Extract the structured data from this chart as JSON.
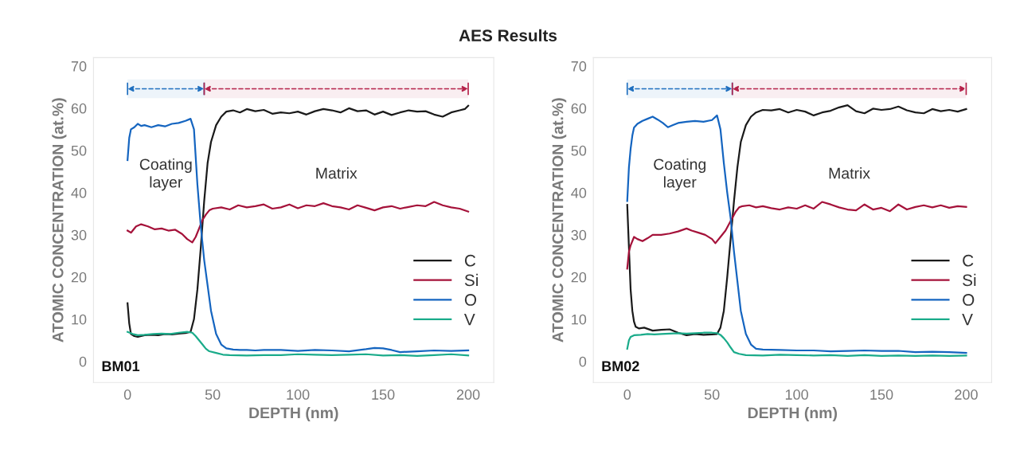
{
  "chart_data": [
    {
      "type": "line",
      "title": "AES Results",
      "xlabel": "DEPTH (nm)",
      "ylabel": "ATOMIC CONCENTRATION (at.%)",
      "xlim": [
        -20,
        215
      ],
      "ylim": [
        -5,
        72
      ],
      "xticks": [
        0,
        50,
        100,
        150,
        200
      ],
      "yticks": [
        0,
        10,
        20,
        30,
        40,
        50,
        60,
        70
      ],
      "grid": false,
      "legend": "right",
      "annotations": [
        "Coating layer",
        "Matrix",
        "BM01"
      ],
      "bands": [
        {
          "axis": "x",
          "from": 0,
          "to": 45,
          "color": "#1f6fbf"
        },
        {
          "axis": "x",
          "from": 45,
          "to": 200,
          "color": "#b5224a"
        }
      ],
      "series": [
        {
          "name": "C",
          "color": "#1a1a1a",
          "x": [
            0,
            1,
            2,
            4,
            6,
            8,
            10,
            14,
            18,
            22,
            26,
            30,
            34,
            37,
            39,
            41,
            43,
            45,
            47,
            49,
            52,
            55,
            58,
            62,
            66,
            70,
            75,
            80,
            85,
            90,
            95,
            100,
            105,
            110,
            115,
            120,
            125,
            130,
            135,
            140,
            145,
            150,
            155,
            160,
            165,
            170,
            175,
            180,
            185,
            190,
            195,
            198,
            200
          ],
          "values": [
            13.8,
            9,
            6.5,
            6,
            5.8,
            6,
            6.2,
            6.3,
            6.2,
            6.5,
            6.4,
            6.6,
            6.7,
            7,
            10,
            17,
            27,
            38,
            47,
            52,
            56,
            58,
            59.2,
            59.5,
            59,
            59.8,
            59.3,
            59.6,
            58.7,
            59,
            58.8,
            59.2,
            58.5,
            59.3,
            59.8,
            59.5,
            59,
            60,
            59.3,
            59.5,
            58.5,
            59.2,
            58.4,
            59,
            59.5,
            59.2,
            59.3,
            58.5,
            58,
            59,
            59.5,
            59.8,
            60.6
          ]
        },
        {
          "name": "Si",
          "color": "#a5123a",
          "x": [
            0,
            2,
            5,
            8,
            12,
            16,
            20,
            24,
            28,
            32,
            35,
            38,
            40,
            42,
            44,
            46,
            48,
            50,
            55,
            60,
            65,
            70,
            75,
            80,
            85,
            90,
            95,
            100,
            105,
            110,
            115,
            120,
            125,
            130,
            135,
            140,
            145,
            150,
            155,
            160,
            165,
            170,
            175,
            180,
            185,
            190,
            195,
            200
          ],
          "values": [
            31,
            30.5,
            32,
            32.5,
            32,
            31.3,
            31.5,
            31,
            31.2,
            30.2,
            29,
            28.2,
            29.5,
            31.5,
            33.5,
            34.8,
            35.8,
            36.2,
            36.5,
            36,
            37,
            36.5,
            36.8,
            37.2,
            36.2,
            36.5,
            37.2,
            36.3,
            37,
            36.8,
            37.5,
            36.8,
            36.5,
            36,
            37,
            36.4,
            35.8,
            36.5,
            36.8,
            36.2,
            36.6,
            37,
            36.8,
            37.8,
            37,
            36.5,
            36.2,
            35.5
          ]
        },
        {
          "name": "O",
          "color": "#1565c0",
          "x": [
            0,
            1,
            2,
            4,
            6,
            8,
            10,
            14,
            18,
            22,
            26,
            30,
            34,
            37,
            39,
            41,
            43,
            45,
            47,
            49,
            52,
            55,
            58,
            62,
            66,
            70,
            75,
            80,
            90,
            100,
            110,
            120,
            130,
            140,
            145,
            150,
            155,
            160,
            170,
            180,
            190,
            200
          ],
          "values": [
            47.7,
            53,
            55,
            55.5,
            56.3,
            55.8,
            56,
            55.5,
            56,
            55.7,
            56.3,
            56.5,
            57,
            57.5,
            55,
            42,
            32,
            24,
            18,
            12,
            6.5,
            4,
            3.1,
            2.8,
            2.7,
            2.7,
            2.6,
            2.7,
            2.7,
            2.5,
            2.7,
            2.6,
            2.4,
            2.9,
            3.2,
            3.1,
            2.7,
            2.2,
            2.4,
            2.6,
            2.5,
            2.6
          ]
        },
        {
          "name": "V",
          "color": "#1aab8a",
          "x": [
            0,
            3,
            6,
            10,
            15,
            20,
            25,
            30,
            35,
            38,
            40,
            42,
            44,
            46,
            48,
            52,
            56,
            60,
            70,
            80,
            90,
            100,
            110,
            120,
            130,
            140,
            150,
            160,
            170,
            180,
            190,
            200
          ],
          "values": [
            7,
            6.5,
            6.2,
            6.3,
            6.5,
            6.6,
            6.5,
            6.8,
            7,
            6.8,
            6,
            5,
            4,
            3,
            2.4,
            2,
            1.6,
            1.5,
            1.4,
            1.5,
            1.5,
            1.7,
            1.6,
            1.5,
            1.6,
            1.7,
            1.4,
            1.5,
            1.3,
            1.5,
            1.7,
            1.4
          ]
        }
      ]
    },
    {
      "type": "line",
      "xlabel": "DEPTH (nm)",
      "ylabel": "ATOMIC CONCENTRATION (at.%)",
      "xlim": [
        -20,
        215
      ],
      "ylim": [
        -5,
        72
      ],
      "xticks": [
        0,
        50,
        100,
        150,
        200
      ],
      "yticks": [
        0,
        10,
        20,
        30,
        40,
        50,
        60,
        70
      ],
      "grid": false,
      "legend": "right",
      "annotations": [
        "Coating layer",
        "Matrix",
        "BM02"
      ],
      "bands": [
        {
          "axis": "x",
          "from": 0,
          "to": 62,
          "color": "#1f6fbf"
        },
        {
          "axis": "x",
          "from": 62,
          "to": 200,
          "color": "#b5224a"
        }
      ],
      "series": [
        {
          "name": "C",
          "color": "#1a1a1a",
          "x": [
            0,
            1,
            2,
            3,
            4,
            5,
            7,
            10,
            15,
            20,
            25,
            30,
            35,
            40,
            45,
            50,
            53,
            55,
            57,
            59,
            61,
            63,
            65,
            67,
            70,
            73,
            76,
            80,
            85,
            90,
            95,
            100,
            105,
            110,
            115,
            120,
            125,
            130,
            135,
            140,
            145,
            150,
            155,
            160,
            165,
            170,
            175,
            180,
            185,
            190,
            195,
            200
          ],
          "values": [
            37.1,
            27,
            17,
            12,
            9.4,
            8.2,
            7.8,
            8,
            7.3,
            7.5,
            7.6,
            6.8,
            6.2,
            6.5,
            6.3,
            6.4,
            6.5,
            8,
            12,
            20,
            29,
            38,
            46,
            52,
            56,
            58,
            59,
            59.6,
            59.5,
            59.8,
            59,
            59.6,
            59.2,
            58.3,
            59,
            59.4,
            60.2,
            60.7,
            59.3,
            58.8,
            59.9,
            59.6,
            59.8,
            60.4,
            59.5,
            59,
            58.8,
            59.8,
            59.3,
            59.6,
            59.2,
            59.8
          ]
        },
        {
          "name": "Si",
          "color": "#a5123a",
          "x": [
            0,
            1,
            2,
            4,
            6,
            9,
            12,
            15,
            20,
            25,
            30,
            35,
            38,
            42,
            46,
            50,
            52,
            55,
            58,
            60,
            62,
            64,
            66,
            68,
            72,
            76,
            80,
            85,
            90,
            95,
            100,
            105,
            110,
            115,
            120,
            125,
            130,
            135,
            140,
            145,
            150,
            155,
            160,
            165,
            170,
            175,
            180,
            185,
            190,
            195,
            200
          ],
          "values": [
            22,
            26,
            27.5,
            29.5,
            29,
            28.5,
            29.2,
            30,
            30,
            30.3,
            30.8,
            31.5,
            31,
            30.5,
            30,
            29,
            28,
            29.5,
            31,
            32.5,
            34,
            35.5,
            36.5,
            36.8,
            37,
            36.5,
            36.8,
            36.3,
            36,
            36.5,
            36.2,
            37,
            36.2,
            37.8,
            37.2,
            36.5,
            36,
            35.8,
            37.2,
            36,
            36.4,
            35.6,
            37.2,
            36,
            36.6,
            37,
            36.5,
            37,
            36.4,
            36.8,
            36.6
          ]
        },
        {
          "name": "O",
          "color": "#1565c0",
          "x": [
            0,
            1,
            2,
            3,
            4,
            6,
            9,
            12,
            15,
            18,
            21,
            24,
            27,
            30,
            35,
            40,
            45,
            50,
            53,
            55,
            57,
            59,
            61,
            63,
            65,
            67,
            70,
            73,
            76,
            80,
            90,
            100,
            110,
            120,
            130,
            140,
            150,
            160,
            170,
            180,
            190,
            200
          ],
          "values": [
            38,
            46,
            50.4,
            53.5,
            55.4,
            56.3,
            57,
            57.5,
            58,
            57.3,
            56.5,
            55.5,
            56,
            56.5,
            56.8,
            57,
            56.8,
            57.2,
            58.3,
            55,
            47,
            40,
            34,
            26,
            19,
            12,
            6.5,
            4,
            3,
            2.8,
            2.7,
            2.6,
            2.6,
            2.4,
            2.5,
            2.6,
            2.5,
            2.5,
            2.2,
            2.3,
            2.2,
            2.0
          ]
        },
        {
          "name": "V",
          "color": "#1aab8a",
          "x": [
            0,
            1,
            2,
            4,
            8,
            12,
            16,
            20,
            25,
            30,
            35,
            40,
            45,
            50,
            53,
            55,
            57,
            59,
            61,
            63,
            66,
            70,
            80,
            90,
            100,
            110,
            120,
            130,
            140,
            150,
            160,
            170,
            180,
            190,
            200
          ],
          "values": [
            3,
            5,
            5.8,
            6.2,
            6.3,
            6.5,
            6.4,
            6.5,
            6.6,
            6.7,
            6.6,
            6.7,
            6.8,
            6.8,
            6.7,
            6.3,
            5.5,
            4.5,
            3.3,
            2.2,
            1.8,
            1.5,
            1.4,
            1.6,
            1.5,
            1.4,
            1.5,
            1.3,
            1.5,
            1.3,
            1.4,
            1.3,
            1.4,
            1.3,
            1.4
          ]
        }
      ]
    }
  ]
}
